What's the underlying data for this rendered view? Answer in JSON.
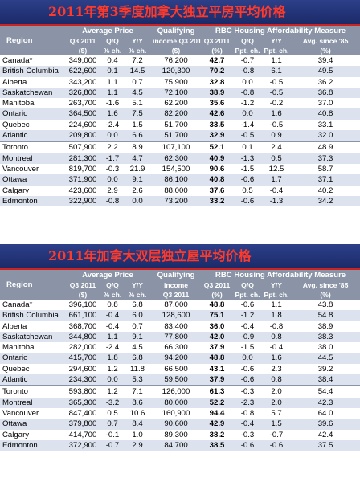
{
  "colors": {
    "header_bg": "#8a94a6",
    "title_bg": "#2c3f89",
    "title_text": "#ff3a2a",
    "row_alt": "#dde3ee"
  },
  "headers": {
    "region": "Region",
    "average_price": "Average Price",
    "qualifying": "Qualifying",
    "rbc": "RBC Housing Affordability Measure",
    "q3_2011": "Q3 2011",
    "qq": "Q/Q",
    "yy": "Y/Y",
    "income": "income",
    "avg_since": "Avg. since '85",
    "dollar": "($)",
    "pct_ch": "% ch.",
    "pct": "(%)",
    "ppt_ch": "Ppt. ch."
  },
  "tables": [
    {
      "title": "2011年第3季度加拿大独立平房平均价格",
      "rows": [
        {
          "region": "Canada*",
          "price": "349,000",
          "pqq": "0.4",
          "pyy": "7.2",
          "income": "76,200",
          "aff": "42.7",
          "aqq": "-0.7",
          "ayy": "1.1",
          "avg": "39.4"
        },
        {
          "region": "British Columbia",
          "price": "622,600",
          "pqq": "0.1",
          "pyy": "14.5",
          "income": "120,300",
          "aff": "70.2",
          "aqq": "-0.8",
          "ayy": "6.1",
          "avg": "49.5"
        },
        {
          "region": "Alberta",
          "price": "343,200",
          "pqq": "1.1",
          "pyy": "0.7",
          "income": "75,900",
          "aff": "32.8",
          "aqq": "0.0",
          "ayy": "-0.5",
          "avg": "36.2"
        },
        {
          "region": "Saskatchewan",
          "price": "326,800",
          "pqq": "1.1",
          "pyy": "4.5",
          "income": "72,100",
          "aff": "38.9",
          "aqq": "-0.8",
          "ayy": "-0.5",
          "avg": "36.8"
        },
        {
          "region": "Manitoba",
          "price": "263,700",
          "pqq": "-1.6",
          "pyy": "5.1",
          "income": "62,200",
          "aff": "35.6",
          "aqq": "-1.2",
          "ayy": "-0.2",
          "avg": "37.0"
        },
        {
          "region": "Ontario",
          "price": "364,500",
          "pqq": "1.6",
          "pyy": "7.5",
          "income": "82,200",
          "aff": "42.6",
          "aqq": "0.0",
          "ayy": "1.6",
          "avg": "40.8"
        },
        {
          "region": "Quebec",
          "price": "224,600",
          "pqq": "-2.4",
          "pyy": "1.5",
          "income": "51,700",
          "aff": "33.5",
          "aqq": "-1.4",
          "ayy": "-0.5",
          "avg": "33.1"
        },
        {
          "region": "Atlantic",
          "price": "209,800",
          "pqq": "0.0",
          "pyy": "6.6",
          "income": "51,700",
          "aff": "32.9",
          "aqq": "-0.5",
          "ayy": "0.9",
          "avg": "32.0"
        },
        {
          "region": "Toronto",
          "price": "507,900",
          "pqq": "2.2",
          "pyy": "8.9",
          "income": "107,100",
          "aff": "52.1",
          "aqq": "0.1",
          "ayy": "2.4",
          "avg": "48.9"
        },
        {
          "region": "Montreal",
          "price": "281,300",
          "pqq": "-1.7",
          "pyy": "4.7",
          "income": "62,300",
          "aff": "40.9",
          "aqq": "-1.3",
          "ayy": "0.5",
          "avg": "37.3"
        },
        {
          "region": "Vancouver",
          "price": "819,700",
          "pqq": "-0.3",
          "pyy": "21.9",
          "income": "154,500",
          "aff": "90.6",
          "aqq": "-1.5",
          "ayy": "12.5",
          "avg": "58.7"
        },
        {
          "region": "Ottawa",
          "price": "371,900",
          "pqq": "0.0",
          "pyy": "9.1",
          "income": "86,100",
          "aff": "40.8",
          "aqq": "-0.6",
          "ayy": "1.7",
          "avg": "37.1"
        },
        {
          "region": "Calgary",
          "price": "423,600",
          "pqq": "2.9",
          "pyy": "2.6",
          "income": "88,000",
          "aff": "37.6",
          "aqq": "0.5",
          "ayy": "-0.4",
          "avg": "40.2"
        },
        {
          "region": "Edmonton",
          "price": "322,900",
          "pqq": "-0.8",
          "pyy": "0.0",
          "income": "73,200",
          "aff": "33.2",
          "aqq": "-0.6",
          "ayy": "-1.3",
          "avg": "34.2"
        }
      ]
    },
    {
      "title": "2011年加拿大双层独立屋平均价格",
      "rows": [
        {
          "region": "Canada*",
          "price": "396,100",
          "pqq": "0.8",
          "pyy": "6.8",
          "income": "87,000",
          "aff": "48.8",
          "aqq": "-0.6",
          "ayy": "1.1",
          "avg": "43.8"
        },
        {
          "region": "British Columbia",
          "price": "661,100",
          "pqq": "-0.4",
          "pyy": "6.0",
          "income": "128,600",
          "aff": "75.1",
          "aqq": "-1.2",
          "ayy": "1.8",
          "avg": "54.8"
        },
        {
          "region": "Alberta",
          "price": "368,700",
          "pqq": "-0.4",
          "pyy": "0.7",
          "income": "83,400",
          "aff": "36.0",
          "aqq": "-0.4",
          "ayy": "-0.8",
          "avg": "38.9"
        },
        {
          "region": "Saskatchewan",
          "price": "344,800",
          "pqq": "1.1",
          "pyy": "9.1",
          "income": "77,800",
          "aff": "42.0",
          "aqq": "-0.9",
          "ayy": "0.8",
          "avg": "38.3"
        },
        {
          "region": "Manitoba",
          "price": "282,000",
          "pqq": "-2.4",
          "pyy": "4.5",
          "income": "66,300",
          "aff": "37.9",
          "aqq": "-1.5",
          "ayy": "-0.4",
          "avg": "38.0"
        },
        {
          "region": "Ontario",
          "price": "415,700",
          "pqq": "1.8",
          "pyy": "6.8",
          "income": "94,200",
          "aff": "48.8",
          "aqq": "0.0",
          "ayy": "1.6",
          "avg": "44.5"
        },
        {
          "region": "Quebec",
          "price": "294,600",
          "pqq": "1.2",
          "pyy": "11.8",
          "income": "66,500",
          "aff": "43.1",
          "aqq": "-0.6",
          "ayy": "2.3",
          "avg": "39.2"
        },
        {
          "region": "Atlantic",
          "price": "234,300",
          "pqq": "0.0",
          "pyy": "5.3",
          "income": "59,500",
          "aff": "37.9",
          "aqq": "-0.6",
          "ayy": "0.8",
          "avg": "38.4"
        },
        {
          "region": "Toronto",
          "price": "593,800",
          "pqq": "1.2",
          "pyy": "7.1",
          "income": "126,000",
          "aff": "61.3",
          "aqq": "-0.3",
          "ayy": "2.0",
          "avg": "54.4"
        },
        {
          "region": "Montreal",
          "price": "365,300",
          "pqq": "-3.2",
          "pyy": "8.6",
          "income": "80,000",
          "aff": "52.2",
          "aqq": "-2.3",
          "ayy": "2.0",
          "avg": "42.3"
        },
        {
          "region": "Vancouver",
          "price": "847,400",
          "pqq": "0.5",
          "pyy": "10.6",
          "income": "160,900",
          "aff": "94.4",
          "aqq": "-0.8",
          "ayy": "5.7",
          "avg": "64.0"
        },
        {
          "region": "Ottawa",
          "price": "379,800",
          "pqq": "0.7",
          "pyy": "8.4",
          "income": "90,600",
          "aff": "42.9",
          "aqq": "-0.4",
          "ayy": "1.5",
          "avg": "39.6"
        },
        {
          "region": "Calgary",
          "price": "414,700",
          "pqq": "-0.1",
          "pyy": "1.0",
          "income": "89,300",
          "aff": "38.2",
          "aqq": "-0.3",
          "ayy": "-0.7",
          "avg": "42.4"
        },
        {
          "region": "Edmonton",
          "price": "372,900",
          "pqq": "-0.7",
          "pyy": "2.9",
          "income": "84,700",
          "aff": "38.5",
          "aqq": "-0.6",
          "ayy": "-0.6",
          "avg": "37.5"
        }
      ]
    }
  ]
}
